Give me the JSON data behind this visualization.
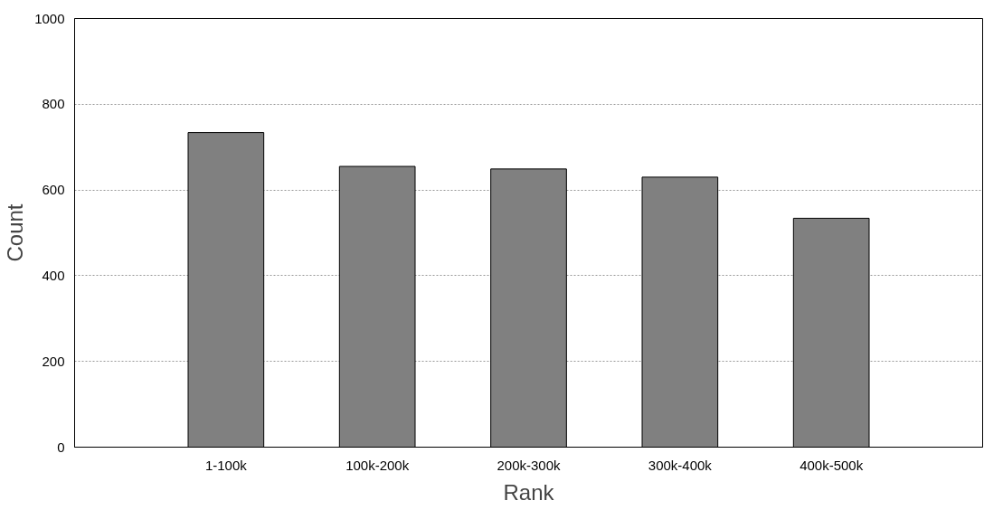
{
  "chart_data": {
    "type": "bar",
    "xlabel": "Rank",
    "ylabel": "Count",
    "categories": [
      "1-100k",
      "100k-200k",
      "200k-300k",
      "300k-400k",
      "400k-500k"
    ],
    "values": [
      734,
      655,
      649,
      630,
      534
    ],
    "color": "#808080",
    "ylim": [
      0,
      1000
    ],
    "yticks": [
      0,
      200,
      400,
      600,
      800,
      1000
    ],
    "grid": "y"
  }
}
